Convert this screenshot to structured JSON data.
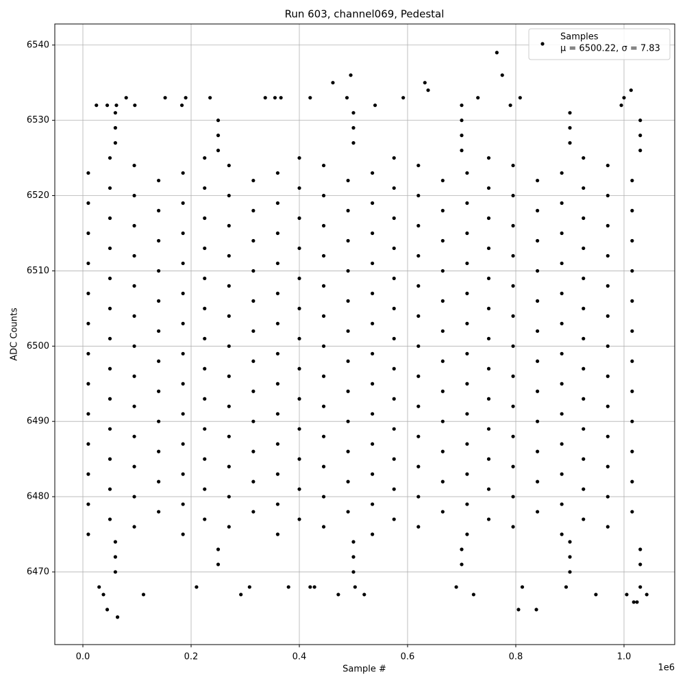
{
  "chart_data": {
    "type": "scatter",
    "title": "Run 603, channel069, Pedestal",
    "x_label": "Sample #",
    "y_label": "ADC Counts",
    "x_offset_label": "1e6",
    "xlim": [
      -51900,
      1093700
    ],
    "ylim": [
      6460.35,
      6542.8
    ],
    "xticks": [
      {
        "value": 0,
        "label": "0.0"
      },
      {
        "value": 200000,
        "label": "0.2"
      },
      {
        "value": 400000,
        "label": "0.4"
      },
      {
        "value": 600000,
        "label": "0.6"
      },
      {
        "value": 800000,
        "label": "0.8"
      },
      {
        "value": 1000000,
        "label": "1.0"
      }
    ],
    "yticks": [
      6470,
      6480,
      6490,
      6500,
      6510,
      6520,
      6530,
      6540
    ],
    "grid": true,
    "legend_position": "upper right",
    "legend_note": "μ = 6500.22, σ = 7.83",
    "series": [
      {
        "name": "Samples",
        "color": "#000000",
        "x": [
          60000,
          500000,
          900000,
          250000,
          700000,
          1030000,
          60000,
          500000,
          900000,
          250000,
          700000,
          1030000,
          60000,
          500000,
          900000,
          10000,
          185000,
          360000,
          535000,
          710000,
          885000,
          95000,
          270000,
          445000,
          620000,
          795000,
          970000,
          50000,
          225000,
          400000,
          575000,
          750000,
          925000,
          140000,
          315000,
          490000,
          665000,
          840000,
          1015000,
          10000,
          185000,
          360000,
          535000,
          710000,
          885000,
          95000,
          270000,
          445000,
          620000,
          795000,
          970000,
          50000,
          225000,
          400000,
          575000,
          750000,
          925000,
          140000,
          315000,
          490000,
          665000,
          840000,
          1015000,
          10000,
          185000,
          360000,
          535000,
          710000,
          885000,
          95000,
          270000,
          445000,
          620000,
          795000,
          970000,
          50000,
          225000,
          400000,
          575000,
          750000,
          925000,
          140000,
          315000,
          490000,
          665000,
          840000,
          1015000,
          10000,
          185000,
          360000,
          535000,
          710000,
          885000,
          95000,
          270000,
          445000,
          620000,
          795000,
          970000,
          50000,
          225000,
          400000,
          575000,
          750000,
          925000,
          140000,
          315000,
          490000,
          665000,
          840000,
          1015000,
          10000,
          185000,
          360000,
          535000,
          710000,
          885000,
          95000,
          270000,
          445000,
          620000,
          795000,
          970000,
          50000,
          225000,
          400000,
          575000,
          750000,
          925000,
          140000,
          315000,
          490000,
          665000,
          840000,
          1015000,
          10000,
          185000,
          360000,
          535000,
          710000,
          885000,
          95000,
          270000,
          445000,
          620000,
          795000,
          970000,
          50000,
          225000,
          400000,
          575000,
          750000,
          925000,
          140000,
          315000,
          490000,
          665000,
          840000,
          1015000,
          10000,
          185000,
          360000,
          535000,
          710000,
          885000,
          95000,
          270000,
          445000,
          620000,
          795000,
          970000,
          50000,
          225000,
          400000,
          575000,
          750000,
          925000,
          140000,
          315000,
          490000,
          665000,
          840000,
          1015000,
          10000,
          185000,
          360000,
          535000,
          710000,
          885000,
          95000,
          270000,
          445000,
          620000,
          795000,
          970000,
          50000,
          225000,
          400000,
          575000,
          750000,
          925000,
          140000,
          315000,
          490000,
          665000,
          840000,
          1015000,
          10000,
          185000,
          360000,
          535000,
          710000,
          885000,
          95000,
          270000,
          445000,
          620000,
          795000,
          970000,
          50000,
          225000,
          400000,
          575000,
          750000,
          925000,
          140000,
          315000,
          490000,
          665000,
          840000,
          1015000,
          10000,
          185000,
          360000,
          535000,
          710000,
          885000,
          95000,
          270000,
          445000,
          620000,
          795000,
          970000,
          50000,
          225000,
          400000,
          575000,
          750000,
          925000,
          140000,
          315000,
          490000,
          665000,
          840000,
          1015000,
          10000,
          185000,
          360000,
          535000,
          710000,
          885000,
          95000,
          270000,
          445000,
          620000,
          795000,
          970000,
          50000,
          225000,
          400000,
          575000,
          750000,
          925000,
          140000,
          315000,
          490000,
          665000,
          840000,
          1015000,
          10000,
          185000,
          360000,
          535000,
          710000,
          885000,
          95000,
          270000,
          445000,
          620000,
          795000,
          970000,
          50000,
          225000,
          400000,
          575000,
          750000,
          925000,
          140000,
          315000,
          490000,
          665000,
          840000,
          1015000,
          10000,
          185000,
          360000,
          535000,
          710000,
          885000,
          95000,
          270000,
          445000,
          620000,
          795000,
          970000,
          50000,
          225000,
          400000,
          575000,
          750000,
          925000,
          250000,
          700000,
          1030000,
          60000,
          500000,
          900000,
          250000,
          700000,
          1030000,
          60000,
          500000,
          900000,
          250000,
          700000,
          1030000,
          60000,
          500000,
          900000,
          765000,
          775000,
          495000,
          462000,
          632000,
          638000,
          1013000,
          80000,
          152000,
          190000,
          235000,
          337000,
          355000,
          366000,
          420000,
          488000,
          592000,
          730000,
          808000,
          1000000,
          995000,
          25000,
          45000,
          62000,
          96000,
          183000,
          540000,
          700000,
          790000,
          64000,
          45000,
          805000,
          838000,
          1018000,
          1024000,
          38000,
          112000,
          292000,
          472000,
          520000,
          722000,
          948000,
          1005000,
          1042000,
          30000,
          210000,
          308000,
          380000,
          420000,
          428000,
          503000,
          690000,
          812000,
          893000,
          1030000
        ],
        "values": [
          6470,
          6470,
          6470,
          6471,
          6471,
          6471,
          6472,
          6472,
          6472,
          6473,
          6473,
          6473,
          6474,
          6474,
          6474,
          6475,
          6475,
          6475,
          6475,
          6475,
          6475,
          6476,
          6476,
          6476,
          6476,
          6476,
          6476,
          6477,
          6477,
          6477,
          6477,
          6477,
          6477,
          6478,
          6478,
          6478,
          6478,
          6478,
          6478,
          6479,
          6479,
          6479,
          6479,
          6479,
          6479,
          6480,
          6480,
          6480,
          6480,
          6480,
          6480,
          6481,
          6481,
          6481,
          6481,
          6481,
          6481,
          6482,
          6482,
          6482,
          6482,
          6482,
          6482,
          6483,
          6483,
          6483,
          6483,
          6483,
          6483,
          6484,
          6484,
          6484,
          6484,
          6484,
          6484,
          6485,
          6485,
          6485,
          6485,
          6485,
          6485,
          6486,
          6486,
          6486,
          6486,
          6486,
          6486,
          6487,
          6487,
          6487,
          6487,
          6487,
          6487,
          6488,
          6488,
          6488,
          6488,
          6488,
          6488,
          6489,
          6489,
          6489,
          6489,
          6489,
          6489,
          6490,
          6490,
          6490,
          6490,
          6490,
          6490,
          6491,
          6491,
          6491,
          6491,
          6491,
          6491,
          6492,
          6492,
          6492,
          6492,
          6492,
          6492,
          6493,
          6493,
          6493,
          6493,
          6493,
          6493,
          6494,
          6494,
          6494,
          6494,
          6494,
          6494,
          6495,
          6495,
          6495,
          6495,
          6495,
          6495,
          6496,
          6496,
          6496,
          6496,
          6496,
          6496,
          6497,
          6497,
          6497,
          6497,
          6497,
          6497,
          6498,
          6498,
          6498,
          6498,
          6498,
          6498,
          6499,
          6499,
          6499,
          6499,
          6499,
          6499,
          6500,
          6500,
          6500,
          6500,
          6500,
          6500,
          6501,
          6501,
          6501,
          6501,
          6501,
          6501,
          6502,
          6502,
          6502,
          6502,
          6502,
          6502,
          6503,
          6503,
          6503,
          6503,
          6503,
          6503,
          6504,
          6504,
          6504,
          6504,
          6504,
          6504,
          6505,
          6505,
          6505,
          6505,
          6505,
          6505,
          6506,
          6506,
          6506,
          6506,
          6506,
          6506,
          6507,
          6507,
          6507,
          6507,
          6507,
          6507,
          6508,
          6508,
          6508,
          6508,
          6508,
          6508,
          6509,
          6509,
          6509,
          6509,
          6509,
          6509,
          6510,
          6510,
          6510,
          6510,
          6510,
          6510,
          6511,
          6511,
          6511,
          6511,
          6511,
          6511,
          6512,
          6512,
          6512,
          6512,
          6512,
          6512,
          6513,
          6513,
          6513,
          6513,
          6513,
          6513,
          6514,
          6514,
          6514,
          6514,
          6514,
          6514,
          6515,
          6515,
          6515,
          6515,
          6515,
          6515,
          6516,
          6516,
          6516,
          6516,
          6516,
          6516,
          6517,
          6517,
          6517,
          6517,
          6517,
          6517,
          6518,
          6518,
          6518,
          6518,
          6518,
          6518,
          6519,
          6519,
          6519,
          6519,
          6519,
          6519,
          6520,
          6520,
          6520,
          6520,
          6520,
          6520,
          6521,
          6521,
          6521,
          6521,
          6521,
          6521,
          6522,
          6522,
          6522,
          6522,
          6522,
          6522,
          6523,
          6523,
          6523,
          6523,
          6523,
          6523,
          6524,
          6524,
          6524,
          6524,
          6524,
          6524,
          6525,
          6525,
          6525,
          6525,
          6525,
          6525,
          6526,
          6526,
          6526,
          6527,
          6527,
          6527,
          6528,
          6528,
          6528,
          6529,
          6529,
          6529,
          6530,
          6530,
          6530,
          6531,
          6531,
          6531,
          6539,
          6536,
          6536,
          6535,
          6535,
          6534,
          6534,
          6533,
          6533,
          6533,
          6533,
          6533,
          6533,
          6533,
          6533,
          6533,
          6533,
          6533,
          6533,
          6533,
          6532,
          6532,
          6532,
          6532,
          6532,
          6532,
          6532,
          6532,
          6532,
          6464,
          6465,
          6465,
          6465,
          6466,
          6466,
          6467,
          6467,
          6467,
          6467,
          6467,
          6467,
          6467,
          6467,
          6467,
          6468,
          6468,
          6468,
          6468,
          6468,
          6468,
          6468,
          6468,
          6468,
          6468,
          6468
        ]
      }
    ]
  }
}
